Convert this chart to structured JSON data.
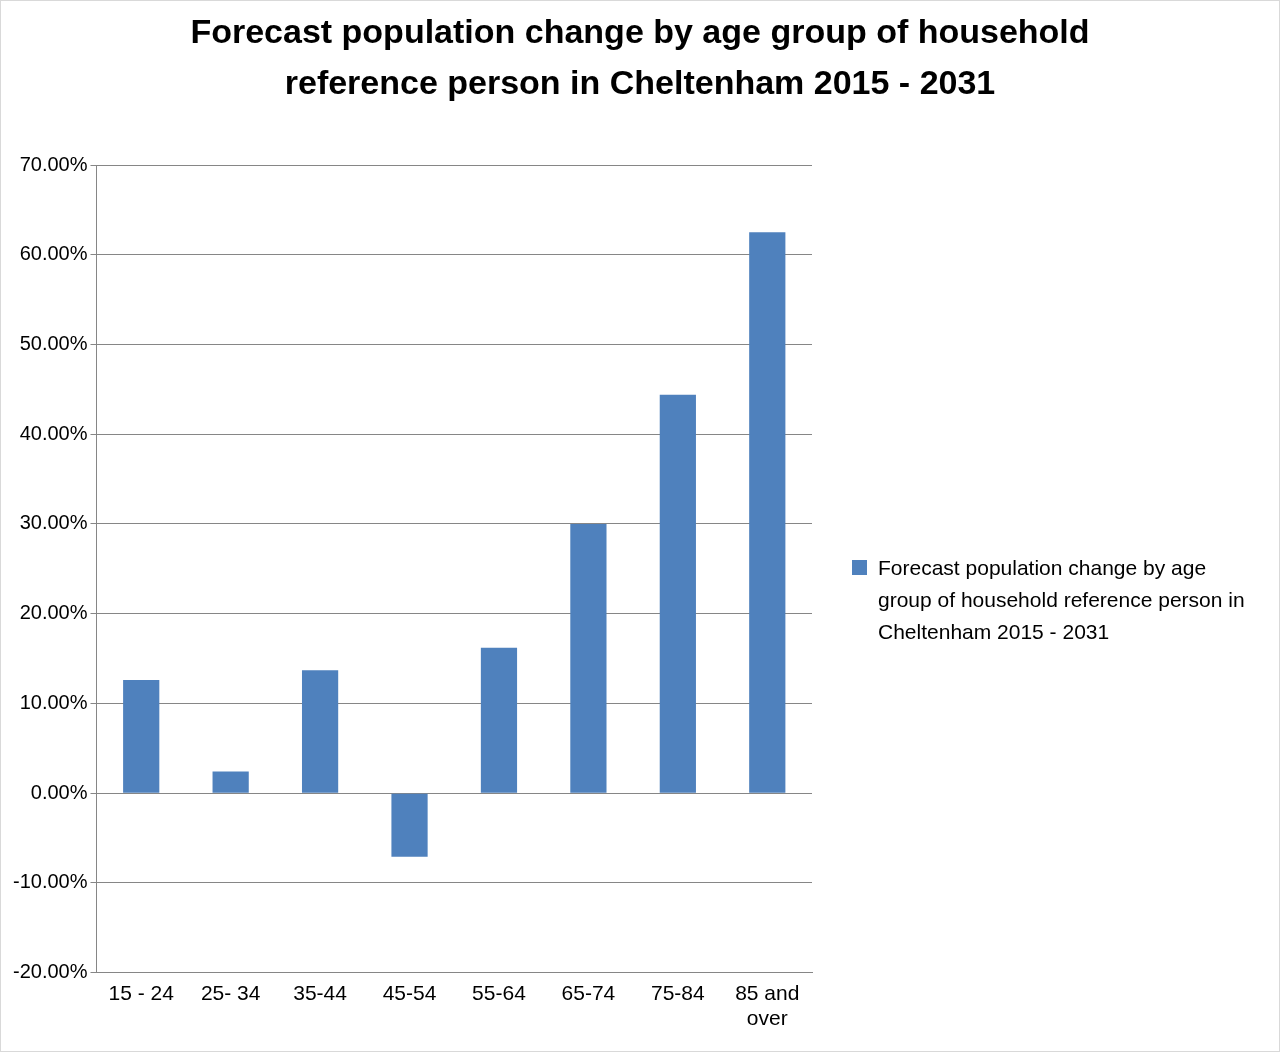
{
  "chart_data": {
    "type": "bar",
    "title": "Forecast population  change by age group of household reference person in Cheltenham 2015 - 2031",
    "categories": [
      "15 - 24",
      "25- 34",
      "35-44",
      "45-54",
      "55-64",
      "65-74",
      "75-84",
      "85 and over"
    ],
    "series": [
      {
        "name": "Forecast population change by age group of household reference person in Cheltenham 2015 - 2031",
        "color": "#4f81bd",
        "values": [
          12.6,
          2.4,
          13.7,
          -7.1,
          16.2,
          30.0,
          44.4,
          62.5
        ]
      }
    ],
    "ylim": [
      -20,
      70
    ],
    "yticks": [
      {
        "value": -20,
        "label": "-20.00%"
      },
      {
        "value": -10,
        "label": "-10.00%"
      },
      {
        "value": 0,
        "label": "0.00%"
      },
      {
        "value": 10,
        "label": "10.00%"
      },
      {
        "value": 20,
        "label": "20.00%"
      },
      {
        "value": 30,
        "label": "30.00%"
      },
      {
        "value": 40,
        "label": "40.00%"
      },
      {
        "value": 50,
        "label": "50.00%"
      },
      {
        "value": 60,
        "label": "60.00%"
      },
      {
        "value": 70,
        "label": "70.00%"
      }
    ],
    "grid": "y",
    "legend": "right"
  }
}
